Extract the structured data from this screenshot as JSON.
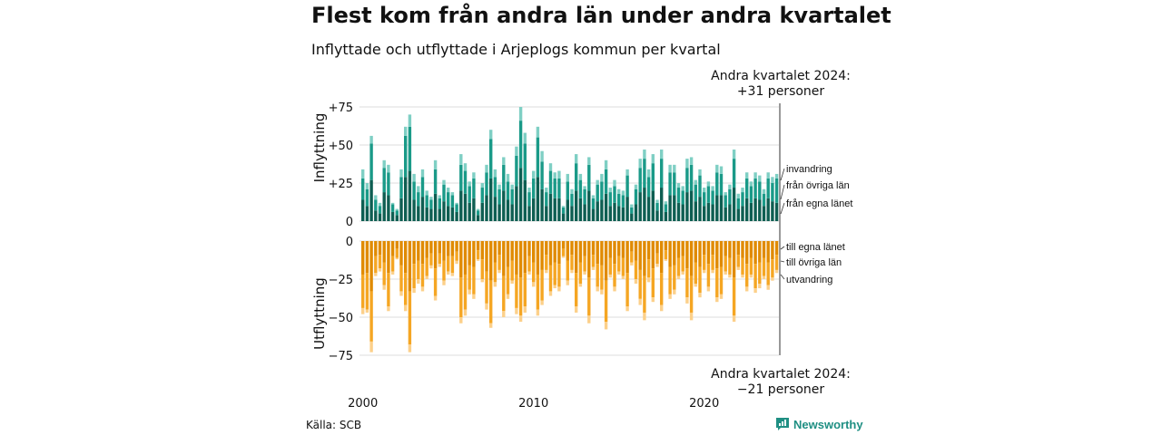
{
  "title": "Flest kom från andra län under andra kvartalet",
  "subtitle": "Inflyttade och utflyttade i Arjeplogs kommun per kvartal",
  "annotation_top": {
    "line1": "Andra kvartalet 2024:",
    "line2": "+31 personer"
  },
  "annotation_bottom": {
    "line1": "Andra kvartalet 2024:",
    "line2": "−21 personer"
  },
  "source": "Källa: SCB",
  "brand": {
    "name": "Newsworthy",
    "icon": "newsworthy-chart-logo-icon"
  },
  "colors": {
    "in_same_county": "#0e5e52",
    "in_other_counties": "#1a9a88",
    "immigration": "#7fcfc4",
    "out_same_county": "#e08a00",
    "out_other_counties": "#f5a623",
    "emigration": "#fcd08a",
    "grid": "#dddddd",
    "axis_line": "#333333"
  },
  "chart_data": {
    "type": "bar",
    "stacked": true,
    "xlabel": "",
    "x_ticks": [
      "2000",
      "2010",
      "2020"
    ],
    "panels": [
      {
        "key": "in",
        "ylabel": "Inflyttning",
        "ylim": [
          0,
          80
        ],
        "y_ticks": [
          "0",
          "+25",
          "+50",
          "+75"
        ],
        "y_tick_values": [
          0,
          25,
          50,
          75
        ],
        "series_labels": [
          "från egna länet",
          "från övriga län",
          "invandring"
        ]
      },
      {
        "key": "out",
        "ylabel": "Utflyttning",
        "ylim": [
          -80,
          0
        ],
        "y_ticks": [
          "0",
          "−25",
          "−50",
          "−75"
        ],
        "y_tick_values": [
          0,
          -25,
          -50,
          -75
        ],
        "series_labels": [
          "till egna länet",
          "till övriga län",
          "utvandring"
        ]
      }
    ],
    "categories": [
      "2000 Q1",
      "2000 Q2",
      "2000 Q3",
      "2000 Q4",
      "2001 Q1",
      "2001 Q2",
      "2001 Q3",
      "2001 Q4",
      "2002 Q1",
      "2002 Q2",
      "2002 Q3",
      "2002 Q4",
      "2003 Q1",
      "2003 Q2",
      "2003 Q3",
      "2003 Q4",
      "2004 Q1",
      "2004 Q2",
      "2004 Q3",
      "2004 Q4",
      "2005 Q1",
      "2005 Q2",
      "2005 Q3",
      "2005 Q4",
      "2006 Q1",
      "2006 Q2",
      "2006 Q3",
      "2006 Q4",
      "2007 Q1",
      "2007 Q2",
      "2007 Q3",
      "2007 Q4",
      "2008 Q1",
      "2008 Q2",
      "2008 Q3",
      "2008 Q4",
      "2009 Q1",
      "2009 Q2",
      "2009 Q3",
      "2009 Q4",
      "2010 Q1",
      "2010 Q2",
      "2010 Q3",
      "2010 Q4",
      "2011 Q1",
      "2011 Q2",
      "2011 Q3",
      "2011 Q4",
      "2012 Q1",
      "2012 Q2",
      "2012 Q3",
      "2012 Q4",
      "2013 Q1",
      "2013 Q2",
      "2013 Q3",
      "2013 Q4",
      "2014 Q1",
      "2014 Q2",
      "2014 Q3",
      "2014 Q4",
      "2015 Q1",
      "2015 Q2",
      "2015 Q3",
      "2015 Q4",
      "2016 Q1",
      "2016 Q2",
      "2016 Q3",
      "2016 Q4",
      "2017 Q1",
      "2017 Q2",
      "2017 Q3",
      "2017 Q4",
      "2018 Q1",
      "2018 Q2",
      "2018 Q3",
      "2018 Q4",
      "2019 Q1",
      "2019 Q2",
      "2019 Q3",
      "2019 Q4",
      "2020 Q1",
      "2020 Q2",
      "2020 Q3",
      "2020 Q4",
      "2021 Q1",
      "2021 Q2",
      "2021 Q3",
      "2021 Q4",
      "2022 Q1",
      "2022 Q2",
      "2022 Q3",
      "2022 Q4",
      "2023 Q1",
      "2023 Q2",
      "2023 Q3",
      "2023 Q4",
      "2024 Q1",
      "2024 Q2"
    ],
    "in_totals": [
      34,
      25,
      56,
      17,
      12,
      40,
      37,
      12,
      8,
      34,
      62,
      70,
      31,
      23,
      34,
      20,
      16,
      40,
      17,
      27,
      22,
      19,
      12,
      44,
      38,
      26,
      32,
      8,
      25,
      37,
      60,
      34,
      24,
      42,
      31,
      24,
      49,
      75,
      58,
      22,
      33,
      62,
      46,
      22,
      38,
      32,
      33,
      10,
      31,
      21,
      44,
      31,
      23,
      42,
      17,
      27,
      31,
      40,
      22,
      27,
      21,
      20,
      34,
      11,
      24,
      41,
      47,
      34,
      44,
      14,
      47,
      13,
      37,
      37,
      25,
      23,
      41,
      42,
      27,
      34,
      22,
      26,
      23,
      37,
      36,
      19,
      24,
      47,
      18,
      22,
      32,
      26,
      32,
      30,
      21,
      32,
      29,
      31
    ],
    "in_series": [
      {
        "name": "från egna länet",
        "values": [
          14,
          10,
          27,
          7,
          5,
          19,
          17,
          6,
          4,
          15,
          29,
          33,
          14,
          10,
          16,
          9,
          8,
          18,
          8,
          13,
          10,
          9,
          6,
          20,
          18,
          12,
          15,
          4,
          12,
          17,
          28,
          16,
          11,
          20,
          14,
          11,
          23,
          35,
          27,
          10,
          15,
          29,
          21,
          10,
          18,
          15,
          15,
          5,
          14,
          10,
          20,
          15,
          11,
          20,
          8,
          13,
          14,
          18,
          10,
          12,
          10,
          9,
          16,
          5,
          11,
          19,
          22,
          16,
          20,
          7,
          22,
          6,
          17,
          17,
          12,
          11,
          19,
          20,
          13,
          16,
          10,
          12,
          11,
          17,
          17,
          9,
          11,
          22,
          8,
          10,
          15,
          12,
          15,
          14,
          10,
          15,
          13,
          12
        ]
      },
      {
        "name": "från övriga län",
        "values": [
          14,
          11,
          24,
          7,
          5,
          16,
          15,
          5,
          3,
          14,
          27,
          29,
          12,
          9,
          13,
          8,
          6,
          16,
          7,
          11,
          9,
          8,
          5,
          17,
          15,
          11,
          13,
          3,
          10,
          15,
          26,
          13,
          10,
          17,
          12,
          10,
          20,
          31,
          24,
          9,
          13,
          26,
          18,
          9,
          15,
          13,
          13,
          4,
          12,
          8,
          18,
          12,
          10,
          17,
          7,
          11,
          12,
          16,
          9,
          11,
          8,
          8,
          14,
          4,
          10,
          16,
          19,
          13,
          18,
          5,
          19,
          5,
          15,
          15,
          10,
          9,
          16,
          17,
          11,
          14,
          9,
          11,
          9,
          15,
          14,
          8,
          10,
          19,
          7,
          9,
          13,
          11,
          13,
          12,
          8,
          13,
          12,
          16
        ]
      },
      {
        "name": "invandring",
        "values": [
          6,
          4,
          5,
          3,
          2,
          5,
          5,
          1,
          1,
          5,
          6,
          8,
          5,
          4,
          5,
          3,
          2,
          6,
          2,
          3,
          3,
          2,
          1,
          7,
          5,
          3,
          4,
          1,
          3,
          5,
          6,
          5,
          3,
          5,
          5,
          3,
          6,
          9,
          7,
          3,
          5,
          7,
          7,
          3,
          5,
          4,
          5,
          1,
          5,
          3,
          6,
          4,
          2,
          5,
          2,
          3,
          5,
          6,
          3,
          4,
          3,
          3,
          4,
          2,
          3,
          6,
          6,
          5,
          6,
          2,
          6,
          2,
          5,
          5,
          3,
          3,
          6,
          5,
          3,
          4,
          3,
          3,
          3,
          5,
          5,
          2,
          3,
          6,
          3,
          3,
          4,
          3,
          4,
          4,
          3,
          4,
          4,
          3
        ]
      }
    ],
    "out_totals": [
      48,
      47,
      73,
      23,
      20,
      32,
      46,
      22,
      12,
      36,
      46,
      73,
      34,
      28,
      33,
      25,
      18,
      39,
      17,
      29,
      22,
      23,
      15,
      54,
      49,
      35,
      38,
      13,
      27,
      45,
      57,
      30,
      21,
      50,
      38,
      28,
      48,
      53,
      47,
      22,
      30,
      49,
      42,
      21,
      36,
      31,
      33,
      11,
      29,
      21,
      47,
      30,
      22,
      54,
      19,
      33,
      35,
      58,
      24,
      33,
      22,
      25,
      46,
      16,
      28,
      42,
      52,
      27,
      40,
      17,
      46,
      13,
      38,
      35,
      25,
      22,
      41,
      52,
      30,
      37,
      21,
      33,
      21,
      40,
      38,
      22,
      24,
      53,
      19,
      24,
      33,
      24,
      34,
      31,
      25,
      32,
      26,
      21
    ],
    "out_series": [
      {
        "name": "till egna länet",
        "values": [
          22,
          21,
          33,
          10,
          9,
          14,
          21,
          10,
          5,
          16,
          21,
          33,
          15,
          13,
          15,
          11,
          8,
          18,
          8,
          13,
          10,
          10,
          7,
          24,
          22,
          16,
          17,
          6,
          12,
          20,
          26,
          14,
          9,
          23,
          17,
          13,
          22,
          24,
          21,
          10,
          14,
          22,
          19,
          9,
          16,
          14,
          15,
          5,
          13,
          9,
          21,
          14,
          10,
          24,
          9,
          15,
          16,
          26,
          11,
          15,
          10,
          11,
          21,
          7,
          13,
          19,
          23,
          12,
          18,
          8,
          21,
          6,
          17,
          16,
          11,
          10,
          18,
          23,
          14,
          17,
          9,
          15,
          9,
          18,
          17,
          10,
          11,
          24,
          9,
          11,
          15,
          11,
          15,
          14,
          11,
          14,
          12,
          9
        ]
      },
      {
        "name": "till övriga län",
        "values": [
          22,
          24,
          33,
          11,
          9,
          15,
          22,
          10,
          6,
          17,
          21,
          35,
          16,
          12,
          15,
          12,
          8,
          18,
          7,
          13,
          10,
          11,
          6,
          26,
          23,
          16,
          18,
          6,
          13,
          21,
          28,
          13,
          10,
          23,
          18,
          13,
          22,
          25,
          22,
          10,
          13,
          23,
          20,
          10,
          17,
          15,
          15,
          5,
          13,
          10,
          22,
          14,
          10,
          25,
          8,
          15,
          16,
          27,
          11,
          15,
          10,
          12,
          22,
          7,
          12,
          19,
          24,
          12,
          19,
          7,
          21,
          6,
          18,
          16,
          12,
          10,
          19,
          24,
          14,
          17,
          10,
          15,
          10,
          19,
          18,
          10,
          11,
          25,
          8,
          11,
          15,
          11,
          16,
          14,
          12,
          15,
          12,
          10
        ]
      },
      {
        "name": "utvandring",
        "values": [
          4,
          2,
          7,
          2,
          2,
          3,
          3,
          2,
          1,
          3,
          4,
          5,
          3,
          3,
          3,
          2,
          2,
          3,
          2,
          3,
          2,
          2,
          2,
          4,
          4,
          3,
          3,
          1,
          2,
          4,
          3,
          3,
          2,
          4,
          3,
          2,
          4,
          4,
          4,
          2,
          3,
          4,
          3,
          2,
          3,
          2,
          3,
          1,
          3,
          2,
          4,
          2,
          2,
          5,
          2,
          3,
          3,
          5,
          2,
          3,
          2,
          2,
          3,
          2,
          3,
          4,
          5,
          3,
          3,
          2,
          4,
          1,
          3,
          3,
          2,
          2,
          4,
          5,
          2,
          3,
          2,
          3,
          2,
          3,
          3,
          2,
          2,
          4,
          2,
          2,
          3,
          2,
          3,
          3,
          2,
          3,
          2,
          2
        ]
      }
    ]
  }
}
